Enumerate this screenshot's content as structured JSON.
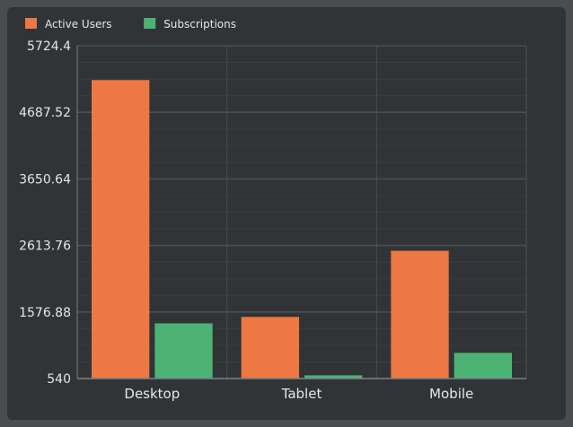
{
  "colors": {
    "background": "#303436",
    "grid": "#4b4f52",
    "axis": "#7a7d80",
    "text": "#e6e6e6"
  },
  "chart_data": {
    "type": "bar",
    "categories": [
      "Desktop",
      "Tablet",
      "Mobile"
    ],
    "series": [
      {
        "name": "Active Users",
        "color": "#ed7843",
        "values": [
          5190,
          1500,
          2530
        ]
      },
      {
        "name": "Subscriptions",
        "color": "#4db375",
        "values": [
          1400,
          590,
          940
        ]
      }
    ],
    "yticks": [
      "540",
      "1576.88",
      "2613.76",
      "3650.64",
      "4687.52",
      "5724.4"
    ],
    "ylim": [
      540,
      5724.4
    ],
    "grid": true,
    "legend": "top-left",
    "title": "",
    "xlabel": "",
    "ylabel": ""
  }
}
